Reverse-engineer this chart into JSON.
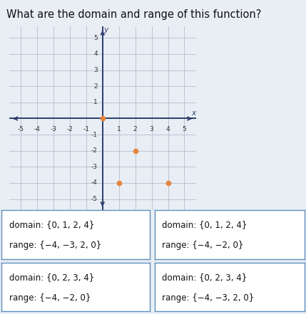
{
  "title": "What are the domain and range of this function?",
  "points": [
    [
      0,
      0
    ],
    [
      2,
      -2
    ],
    [
      1,
      -4
    ],
    [
      4,
      -4
    ]
  ],
  "point_color": "#E8833A",
  "axis_color": "#2b3d6b",
  "grid_color": "#b0bfcf",
  "bg_color": "#e8eef4",
  "options": [
    {
      "domain": "domain: {0, 1, 2, 4}",
      "range": "range: {−4, −3, 2, 0}"
    },
    {
      "domain": "domain: {0, 1, 2, 4}",
      "range": "range: {−4, −2, 0}"
    },
    {
      "domain": "domain: {0, 2, 3, 4}",
      "range": "range: {−4, −2, 0}"
    },
    {
      "domain": "domain: {0, 2, 3, 4}",
      "range": "range: {−4, −3, 2, 0}"
    }
  ],
  "box_border_color": "#6090c0",
  "xticks": [
    -5,
    -4,
    -3,
    -2,
    -1,
    1,
    2,
    3,
    4,
    5
  ],
  "yticks": [
    -5,
    -4,
    -3,
    -2,
    -1,
    1,
    2,
    3,
    4,
    5
  ]
}
